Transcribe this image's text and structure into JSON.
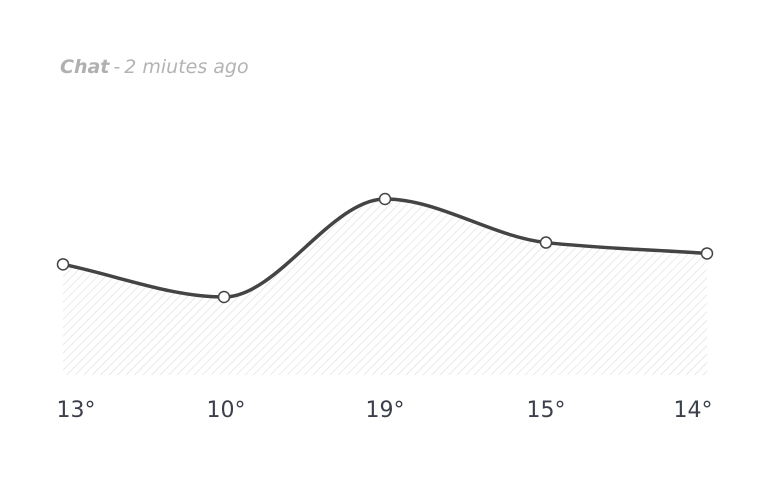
{
  "header": {
    "app_name": "Chat",
    "separator": "-",
    "timestamp": "2 miutes ago"
  },
  "chart_data": {
    "type": "area",
    "x": [
      "13°",
      "10°",
      "19°",
      "15°",
      "14°"
    ],
    "values": [
      13,
      10,
      19,
      15,
      14
    ],
    "title": "",
    "xlabel": "",
    "ylabel": "",
    "grid": false,
    "legend": "none",
    "colors": {
      "line": "#444444",
      "fill_hatch": "#d9d9d9",
      "point_fill": "#ffffff",
      "point_stroke": "#444444"
    }
  }
}
